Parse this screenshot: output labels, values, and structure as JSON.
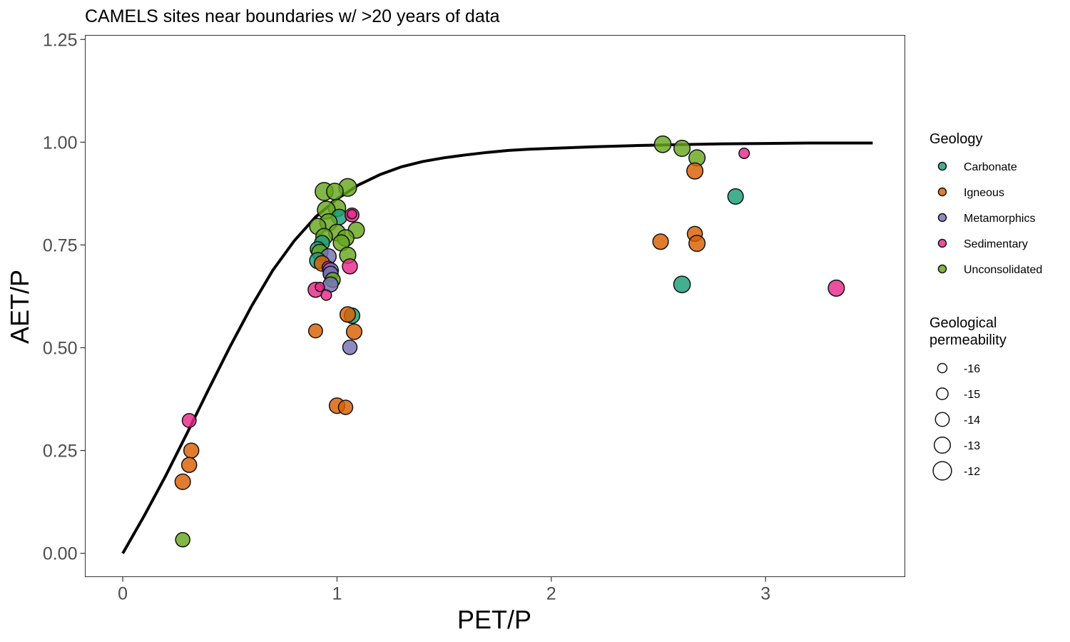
{
  "chart_data": {
    "type": "scatter",
    "title": "CAMELS sites near boundaries w/ >20 years of data",
    "xlabel": "PET/P",
    "ylabel": "AET/P",
    "xlim": [
      -0.175,
      3.65
    ],
    "ylim": [
      -0.057,
      1.26
    ],
    "x_ticks": [
      0,
      1,
      2,
      3
    ],
    "x_tick_labels": [
      "0",
      "1",
      "2",
      "3"
    ],
    "y_ticks": [
      0,
      0.25,
      0.5,
      0.75,
      1.0,
      1.25
    ],
    "y_tick_labels": [
      "0.00",
      "0.25",
      "0.50",
      "0.75",
      "1.00",
      "1.25"
    ],
    "grid": false,
    "legend_placement": "right",
    "curve": {
      "name": "",
      "x_range": [
        0,
        3.5
      ],
      "x": [
        0,
        0.1,
        0.2,
        0.3,
        0.4,
        0.5,
        0.6,
        0.7,
        0.8,
        0.9,
        1.0,
        1.1,
        1.2,
        1.3,
        1.4,
        1.5,
        1.6,
        1.7,
        1.8,
        1.9,
        2.0,
        2.2,
        2.4,
        2.6,
        2.8,
        3.0,
        3.2,
        3.5
      ],
      "y": [
        0,
        0.091,
        0.188,
        0.292,
        0.398,
        0.502,
        0.6,
        0.688,
        0.76,
        0.818,
        0.862,
        0.896,
        0.921,
        0.94,
        0.953,
        0.962,
        0.969,
        0.975,
        0.98,
        0.983,
        0.985,
        0.989,
        0.992,
        0.994,
        0.996,
        0.997,
        0.998,
        0.998
      ]
    },
    "legend_color": {
      "title": "Geology",
      "entries": [
        {
          "name": "Carbonate",
          "color": "#1B9E77"
        },
        {
          "name": "Igneous",
          "color": "#D95F02"
        },
        {
          "name": "Metamorphics",
          "color": "#7570B3"
        },
        {
          "name": "Sedimentary",
          "color": "#E7298A"
        },
        {
          "name": "Unconsolidated",
          "color": "#66A61E"
        }
      ]
    },
    "legend_size": {
      "title": [
        "Geological",
        "permeability"
      ],
      "entries": [
        {
          "label": "-16",
          "value": -16
        },
        {
          "label": "-15",
          "value": -15
        },
        {
          "label": "-14",
          "value": -14
        },
        {
          "label": "-13",
          "value": -13
        },
        {
          "label": "-12",
          "value": -12
        }
      ]
    },
    "points": [
      {
        "x": 2.52,
        "y": 0.995,
        "geology": "Unconsolidated",
        "perm": -12.8
      },
      {
        "x": 2.61,
        "y": 0.985,
        "geology": "Unconsolidated",
        "perm": -13.0
      },
      {
        "x": 2.68,
        "y": 0.962,
        "geology": "Unconsolidated",
        "perm": -13.0
      },
      {
        "x": 2.67,
        "y": 0.93,
        "geology": "Igneous",
        "perm": -13.0
      },
      {
        "x": 2.9,
        "y": 0.973,
        "geology": "Sedimentary",
        "perm": -15.5
      },
      {
        "x": 2.86,
        "y": 0.868,
        "geology": "Carbonate",
        "perm": -13.3
      },
      {
        "x": 2.51,
        "y": 0.758,
        "geology": "Igneous",
        "perm": -13.3
      },
      {
        "x": 2.67,
        "y": 0.777,
        "geology": "Igneous",
        "perm": -13.5
      },
      {
        "x": 2.68,
        "y": 0.754,
        "geology": "Igneous",
        "perm": -13.0
      },
      {
        "x": 2.61,
        "y": 0.654,
        "geology": "Carbonate",
        "perm": -12.8
      },
      {
        "x": 3.33,
        "y": 0.645,
        "geology": "Sedimentary",
        "perm": -13.0
      },
      {
        "x": 1.05,
        "y": 0.89,
        "geology": "Unconsolidated",
        "perm": -12.3
      },
      {
        "x": 0.94,
        "y": 0.88,
        "geology": "Unconsolidated",
        "perm": -12.2
      },
      {
        "x": 0.99,
        "y": 0.88,
        "geology": "Unconsolidated",
        "perm": -12.8
      },
      {
        "x": 1.0,
        "y": 0.84,
        "geology": "Unconsolidated",
        "perm": -12.5
      },
      {
        "x": 0.95,
        "y": 0.835,
        "geology": "Unconsolidated",
        "perm": -12.3
      },
      {
        "x": 1.01,
        "y": 0.818,
        "geology": "Carbonate",
        "perm": -13.3
      },
      {
        "x": 1.07,
        "y": 0.823,
        "geology": "Sedimentary",
        "perm": -14.0
      },
      {
        "x": 1.07,
        "y": 0.825,
        "geology": "Sedimentary",
        "perm": -16.0
      },
      {
        "x": 0.96,
        "y": 0.805,
        "geology": "Unconsolidated",
        "perm": -12.5
      },
      {
        "x": 0.91,
        "y": 0.795,
        "geology": "Unconsolidated",
        "perm": -13.0
      },
      {
        "x": 1.09,
        "y": 0.786,
        "geology": "Unconsolidated",
        "perm": -13.0
      },
      {
        "x": 1.0,
        "y": 0.78,
        "geology": "Unconsolidated",
        "perm": -12.8
      },
      {
        "x": 1.04,
        "y": 0.767,
        "geology": "Unconsolidated",
        "perm": -12.8
      },
      {
        "x": 0.94,
        "y": 0.77,
        "geology": "Unconsolidated",
        "perm": -12.8
      },
      {
        "x": 1.02,
        "y": 0.755,
        "geology": "Unconsolidated",
        "perm": -13.0
      },
      {
        "x": 0.93,
        "y": 0.755,
        "geology": "Carbonate",
        "perm": -13.5
      },
      {
        "x": 0.91,
        "y": 0.74,
        "geology": "Carbonate",
        "perm": -13.5
      },
      {
        "x": 0.92,
        "y": 0.732,
        "geology": "Unconsolidated",
        "perm": -13.0
      },
      {
        "x": 1.05,
        "y": 0.725,
        "geology": "Unconsolidated",
        "perm": -13.0
      },
      {
        "x": 0.96,
        "y": 0.722,
        "geology": "Metamorphics",
        "perm": -13.3
      },
      {
        "x": 0.91,
        "y": 0.712,
        "geology": "Carbonate",
        "perm": -13.0
      },
      {
        "x": 0.93,
        "y": 0.705,
        "geology": "Igneous",
        "perm": -13.3
      },
      {
        "x": 1.06,
        "y": 0.698,
        "geology": "Sedimentary",
        "perm": -13.5
      },
      {
        "x": 0.96,
        "y": 0.695,
        "geology": "Sedimentary",
        "perm": -14.5
      },
      {
        "x": 0.97,
        "y": 0.688,
        "geology": "Metamorphics",
        "perm": -13.3
      },
      {
        "x": 0.97,
        "y": 0.68,
        "geology": "Metamorphics",
        "perm": -13.5
      },
      {
        "x": 0.98,
        "y": 0.665,
        "geology": "Unconsolidated",
        "perm": -13.5
      },
      {
        "x": 0.97,
        "y": 0.654,
        "geology": "Metamorphics",
        "perm": -13.5
      },
      {
        "x": 0.9,
        "y": 0.641,
        "geology": "Sedimentary",
        "perm": -13.5
      },
      {
        "x": 0.92,
        "y": 0.648,
        "geology": "Sedimentary",
        "perm": -16.0
      },
      {
        "x": 0.95,
        "y": 0.628,
        "geology": "Sedimentary",
        "perm": -15.5
      },
      {
        "x": 1.07,
        "y": 0.578,
        "geology": "Carbonate",
        "perm": -13.3
      },
      {
        "x": 1.05,
        "y": 0.581,
        "geology": "Igneous",
        "perm": -13.3
      },
      {
        "x": 0.9,
        "y": 0.541,
        "geology": "Igneous",
        "perm": -14.0
      },
      {
        "x": 1.08,
        "y": 0.539,
        "geology": "Igneous",
        "perm": -13.3
      },
      {
        "x": 1.06,
        "y": 0.501,
        "geology": "Metamorphics",
        "perm": -13.8
      },
      {
        "x": 1.0,
        "y": 0.359,
        "geology": "Igneous",
        "perm": -13.3
      },
      {
        "x": 1.04,
        "y": 0.355,
        "geology": "Igneous",
        "perm": -13.8
      },
      {
        "x": 0.31,
        "y": 0.323,
        "geology": "Sedimentary",
        "perm": -14.0
      },
      {
        "x": 0.32,
        "y": 0.25,
        "geology": "Igneous",
        "perm": -13.5
      },
      {
        "x": 0.31,
        "y": 0.215,
        "geology": "Igneous",
        "perm": -13.5
      },
      {
        "x": 0.28,
        "y": 0.174,
        "geology": "Igneous",
        "perm": -13.3
      },
      {
        "x": 0.28,
        "y": 0.033,
        "geology": "Unconsolidated",
        "perm": -13.8
      }
    ]
  }
}
